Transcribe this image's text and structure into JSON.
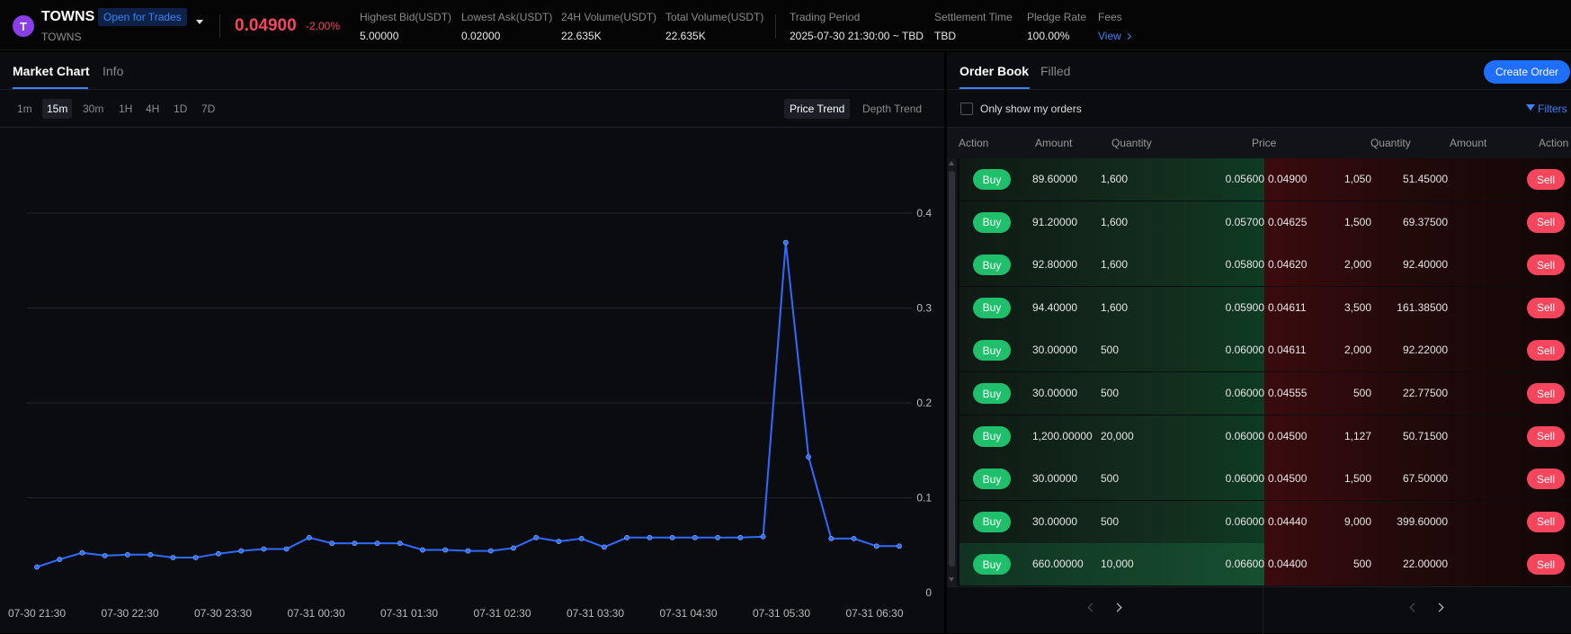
{
  "header": {
    "symbol": "TOWNS",
    "symbol_sub": "TOWNS",
    "status": "Open for Trades",
    "last_price": "0.04900",
    "change": "-2.00%",
    "stats": [
      {
        "label": "Highest Bid(USDT)",
        "value": "5.00000"
      },
      {
        "label": "Lowest Ask(USDT)",
        "value": "0.02000"
      },
      {
        "label": "24H Volume(USDT)",
        "value": "22.635K"
      },
      {
        "label": "Total Volume(USDT)",
        "value": "22.635K"
      },
      {
        "label": "Trading Period",
        "value": "2025-07-30 21:30:00 ~ TBD"
      },
      {
        "label": "Settlement Time",
        "value": "TBD"
      },
      {
        "label": "Pledge Rate",
        "value": "100.00%"
      },
      {
        "label": "Fees",
        "value": "View"
      }
    ]
  },
  "chart_panel": {
    "tabs": [
      "Market Chart",
      "Info"
    ],
    "intervals": [
      "1m",
      "15m",
      "30m",
      "1H",
      "4H",
      "1D",
      "7D"
    ],
    "active_interval": "15m",
    "modes": [
      "Price Trend",
      "Depth Trend"
    ],
    "active_mode": "Price Trend"
  },
  "chart_data": {
    "type": "line",
    "title": "",
    "xlabel": "",
    "ylabel": "",
    "ylim": [
      0,
      0.4
    ],
    "yticks": [
      "0",
      "0.1",
      "0.2",
      "0.3",
      "0.4"
    ],
    "xticks": [
      "07-30 21:30",
      "07-30 22:30",
      "07-30 23:30",
      "07-31 00:30",
      "07-31 01:30",
      "07-31 02:30",
      "07-31 03:30",
      "07-31 04:30",
      "07-31 05:30",
      "07-31 06:30"
    ],
    "grid": true,
    "line_color": "#2f6bff",
    "series": [
      {
        "values": [
          0.027,
          0.035,
          0.042,
          0.039,
          0.04,
          0.04,
          0.037,
          0.037,
          0.041,
          0.044,
          0.046,
          0.046,
          0.058,
          0.052,
          0.052,
          0.052,
          0.052,
          0.045,
          0.045,
          0.044,
          0.044,
          0.047,
          0.058,
          0.054,
          0.057,
          0.048,
          0.058,
          0.058,
          0.058,
          0.058,
          0.058,
          0.058,
          0.059,
          0.369,
          0.143,
          0.057,
          0.057,
          0.049,
          0.049
        ]
      }
    ]
  },
  "order_book": {
    "tabs": [
      "Order Book",
      "Filled"
    ],
    "create_label": "Create Order",
    "only_mine_label": "Only show my orders",
    "filters_label": "Filters",
    "columns": [
      "Action",
      "Amount",
      "Quantity",
      "Price",
      "Quantity",
      "Amount",
      "Action"
    ],
    "buy_label": "Buy",
    "sell_label": "Sell",
    "rows": [
      {
        "bid_amount": "89.60000",
        "bid_qty": "1,600",
        "bid_price": "0.05600",
        "ask_price": "0.04900",
        "ask_qty": "1,050",
        "ask_amount": "51.45000"
      },
      {
        "bid_amount": "91.20000",
        "bid_qty": "1,600",
        "bid_price": "0.05700",
        "ask_price": "0.04625",
        "ask_qty": "1,500",
        "ask_amount": "69.37500"
      },
      {
        "bid_amount": "92.80000",
        "bid_qty": "1,600",
        "bid_price": "0.05800",
        "ask_price": "0.04620",
        "ask_qty": "2,000",
        "ask_amount": "92.40000"
      },
      {
        "bid_amount": "94.40000",
        "bid_qty": "1,600",
        "bid_price": "0.05900",
        "ask_price": "0.04611",
        "ask_qty": "3,500",
        "ask_amount": "161.38500"
      },
      {
        "bid_amount": "30.00000",
        "bid_qty": "500",
        "bid_price": "0.06000",
        "ask_price": "0.04611",
        "ask_qty": "2,000",
        "ask_amount": "92.22000"
      },
      {
        "bid_amount": "30.00000",
        "bid_qty": "500",
        "bid_price": "0.06000",
        "ask_price": "0.04555",
        "ask_qty": "500",
        "ask_amount": "22.77500"
      },
      {
        "bid_amount": "1,200.00000",
        "bid_qty": "20,000",
        "bid_price": "0.06000",
        "ask_price": "0.04500",
        "ask_qty": "1,127",
        "ask_amount": "50.71500"
      },
      {
        "bid_amount": "30.00000",
        "bid_qty": "500",
        "bid_price": "0.06000",
        "ask_price": "0.04500",
        "ask_qty": "1,500",
        "ask_amount": "67.50000"
      },
      {
        "bid_amount": "30.00000",
        "bid_qty": "500",
        "bid_price": "0.06000",
        "ask_price": "0.04440",
        "ask_qty": "9,000",
        "ask_amount": "399.60000"
      },
      {
        "bid_amount": "660.00000",
        "bid_qty": "10,000",
        "bid_price": "0.06600",
        "ask_price": "0.04400",
        "ask_qty": "500",
        "ask_amount": "22.00000"
      }
    ]
  }
}
